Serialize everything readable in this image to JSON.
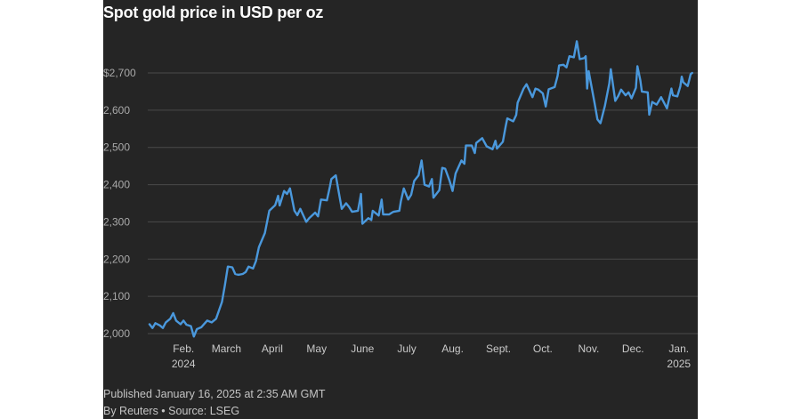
{
  "title": "Spot gold price in USD per oz",
  "published": "Published January 16, 2025 at 2:35 AM GMT",
  "byline": "By Reuters • Source: LSEG",
  "colors": {
    "background": "#252525",
    "line": "#4a98dc",
    "grid": "#4a4a4a"
  },
  "chart_data": {
    "type": "line",
    "title": "Spot gold price in USD per oz",
    "xlabel": "",
    "ylabel": "",
    "ylim": [
      2000,
      2750
    ],
    "xlim": [
      "2024-01-15",
      "2025-01-15"
    ],
    "grid": true,
    "y_ticks": [
      {
        "value": 2000,
        "label": "2,000"
      },
      {
        "value": 2100,
        "label": "2,100"
      },
      {
        "value": 2200,
        "label": "2,200"
      },
      {
        "value": 2300,
        "label": "2,300"
      },
      {
        "value": 2400,
        "label": "2,400"
      },
      {
        "value": 2500,
        "label": "2,500"
      },
      {
        "value": 2600,
        "label": "2,600"
      },
      {
        "value": 2700,
        "label": "$2,700"
      }
    ],
    "x_ticks": [
      {
        "date": "2024-02-01",
        "label": "Feb.",
        "sublabel": "2024"
      },
      {
        "date": "2024-03-01",
        "label": "March",
        "sublabel": ""
      },
      {
        "date": "2024-04-01",
        "label": "April",
        "sublabel": ""
      },
      {
        "date": "2024-05-01",
        "label": "May",
        "sublabel": ""
      },
      {
        "date": "2024-06-01",
        "label": "June",
        "sublabel": ""
      },
      {
        "date": "2024-07-01",
        "label": "July",
        "sublabel": ""
      },
      {
        "date": "2024-08-01",
        "label": "Aug.",
        "sublabel": ""
      },
      {
        "date": "2024-09-01",
        "label": "Sept.",
        "sublabel": ""
      },
      {
        "date": "2024-10-01",
        "label": "Oct.",
        "sublabel": ""
      },
      {
        "date": "2024-11-01",
        "label": "Nov.",
        "sublabel": ""
      },
      {
        "date": "2024-12-01",
        "label": "Dec.",
        "sublabel": ""
      },
      {
        "date": "2025-01-01",
        "label": "Jan.",
        "sublabel": "2025"
      }
    ],
    "series": [
      {
        "values": [
          [
            "2024-01-15",
            2025
          ],
          [
            "2024-01-17",
            2015
          ],
          [
            "2024-01-19",
            2028
          ],
          [
            "2024-01-22",
            2022
          ],
          [
            "2024-01-24",
            2015
          ],
          [
            "2024-01-26",
            2030
          ],
          [
            "2024-01-29",
            2040
          ],
          [
            "2024-01-31",
            2055
          ],
          [
            "2024-02-02",
            2035
          ],
          [
            "2024-02-05",
            2025
          ],
          [
            "2024-02-07",
            2035
          ],
          [
            "2024-02-09",
            2024
          ],
          [
            "2024-02-12",
            2020
          ],
          [
            "2024-02-14",
            1992
          ],
          [
            "2024-02-16",
            2012
          ],
          [
            "2024-02-19",
            2017
          ],
          [
            "2024-02-21",
            2026
          ],
          [
            "2024-02-23",
            2035
          ],
          [
            "2024-02-26",
            2030
          ],
          [
            "2024-02-29",
            2040
          ],
          [
            "2024-03-04",
            2085
          ],
          [
            "2024-03-06",
            2130
          ],
          [
            "2024-03-08",
            2180
          ],
          [
            "2024-03-11",
            2178
          ],
          [
            "2024-03-13",
            2160
          ],
          [
            "2024-03-15",
            2158
          ],
          [
            "2024-03-18",
            2160
          ],
          [
            "2024-03-20",
            2165
          ],
          [
            "2024-03-22",
            2180
          ],
          [
            "2024-03-25",
            2175
          ],
          [
            "2024-03-27",
            2195
          ],
          [
            "2024-03-29",
            2232
          ],
          [
            "2024-04-02",
            2270
          ],
          [
            "2024-04-05",
            2330
          ],
          [
            "2024-04-09",
            2345
          ],
          [
            "2024-04-11",
            2370
          ],
          [
            "2024-04-12",
            2344
          ],
          [
            "2024-04-15",
            2383
          ],
          [
            "2024-04-17",
            2375
          ],
          [
            "2024-04-19",
            2390
          ],
          [
            "2024-04-22",
            2330
          ],
          [
            "2024-04-24",
            2318
          ],
          [
            "2024-04-26",
            2335
          ],
          [
            "2024-04-30",
            2300
          ],
          [
            "2024-05-02",
            2310
          ],
          [
            "2024-05-06",
            2325
          ],
          [
            "2024-05-08",
            2315
          ],
          [
            "2024-05-10",
            2360
          ],
          [
            "2024-05-14",
            2358
          ],
          [
            "2024-05-16",
            2395
          ],
          [
            "2024-05-17",
            2415
          ],
          [
            "2024-05-20",
            2425
          ],
          [
            "2024-05-22",
            2380
          ],
          [
            "2024-05-24",
            2335
          ],
          [
            "2024-05-27",
            2350
          ],
          [
            "2024-05-29",
            2340
          ],
          [
            "2024-05-31",
            2327
          ],
          [
            "2024-06-04",
            2330
          ],
          [
            "2024-06-05",
            2352
          ],
          [
            "2024-06-06",
            2375
          ],
          [
            "2024-06-07",
            2295
          ],
          [
            "2024-06-11",
            2310
          ],
          [
            "2024-06-13",
            2305
          ],
          [
            "2024-06-14",
            2330
          ],
          [
            "2024-06-18",
            2317
          ],
          [
            "2024-06-20",
            2360
          ],
          [
            "2024-06-21",
            2320
          ],
          [
            "2024-06-25",
            2320
          ],
          [
            "2024-06-27",
            2325
          ],
          [
            "2024-06-28",
            2327
          ],
          [
            "2024-07-02",
            2330
          ],
          [
            "2024-07-03",
            2355
          ],
          [
            "2024-07-05",
            2390
          ],
          [
            "2024-07-08",
            2360
          ],
          [
            "2024-07-10",
            2373
          ],
          [
            "2024-07-12",
            2410
          ],
          [
            "2024-07-15",
            2425
          ],
          [
            "2024-07-17",
            2465
          ],
          [
            "2024-07-19",
            2400
          ],
          [
            "2024-07-22",
            2395
          ],
          [
            "2024-07-24",
            2415
          ],
          [
            "2024-07-25",
            2365
          ],
          [
            "2024-07-29",
            2385
          ],
          [
            "2024-07-31",
            2445
          ],
          [
            "2024-08-02",
            2443
          ],
          [
            "2024-08-05",
            2410
          ],
          [
            "2024-08-07",
            2383
          ],
          [
            "2024-08-09",
            2430
          ],
          [
            "2024-08-13",
            2465
          ],
          [
            "2024-08-15",
            2456
          ],
          [
            "2024-08-16",
            2505
          ],
          [
            "2024-08-20",
            2505
          ],
          [
            "2024-08-22",
            2485
          ],
          [
            "2024-08-23",
            2512
          ],
          [
            "2024-08-27",
            2525
          ],
          [
            "2024-08-30",
            2503
          ],
          [
            "2024-09-03",
            2495
          ],
          [
            "2024-09-05",
            2518
          ],
          [
            "2024-09-06",
            2497
          ],
          [
            "2024-09-10",
            2515
          ],
          [
            "2024-09-12",
            2558
          ],
          [
            "2024-09-13",
            2578
          ],
          [
            "2024-09-17",
            2570
          ],
          [
            "2024-09-19",
            2587
          ],
          [
            "2024-09-20",
            2620
          ],
          [
            "2024-09-24",
            2658
          ],
          [
            "2024-09-26",
            2670
          ],
          [
            "2024-09-30",
            2635
          ],
          [
            "2024-10-02",
            2658
          ],
          [
            "2024-10-04",
            2655
          ],
          [
            "2024-10-07",
            2645
          ],
          [
            "2024-10-09",
            2610
          ],
          [
            "2024-10-11",
            2656
          ],
          [
            "2024-10-15",
            2662
          ],
          [
            "2024-10-17",
            2692
          ],
          [
            "2024-10-18",
            2720
          ],
          [
            "2024-10-21",
            2722
          ],
          [
            "2024-10-23",
            2715
          ],
          [
            "2024-10-25",
            2745
          ],
          [
            "2024-10-28",
            2742
          ],
          [
            "2024-10-30",
            2785
          ],
          [
            "2024-11-01",
            2737
          ],
          [
            "2024-11-04",
            2740
          ],
          [
            "2024-11-05",
            2745
          ],
          [
            "2024-11-06",
            2658
          ],
          [
            "2024-11-07",
            2705
          ],
          [
            "2024-11-11",
            2620
          ],
          [
            "2024-11-13",
            2575
          ],
          [
            "2024-11-15",
            2565
          ],
          [
            "2024-11-18",
            2612
          ],
          [
            "2024-11-21",
            2672
          ],
          [
            "2024-11-22",
            2710
          ],
          [
            "2024-11-25",
            2625
          ],
          [
            "2024-11-27",
            2638
          ],
          [
            "2024-11-29",
            2655
          ],
          [
            "2024-12-02",
            2640
          ],
          [
            "2024-12-04",
            2648
          ],
          [
            "2024-12-06",
            2632
          ],
          [
            "2024-12-09",
            2660
          ],
          [
            "2024-12-10",
            2718
          ],
          [
            "2024-12-12",
            2680
          ],
          [
            "2024-12-13",
            2650
          ],
          [
            "2024-12-17",
            2648
          ],
          [
            "2024-12-18",
            2588
          ],
          [
            "2024-12-20",
            2622
          ],
          [
            "2024-12-23",
            2615
          ],
          [
            "2024-12-26",
            2635
          ],
          [
            "2024-12-30",
            2605
          ],
          [
            "2025-01-02",
            2658
          ],
          [
            "2025-01-03",
            2640
          ],
          [
            "2025-01-06",
            2637
          ],
          [
            "2025-01-08",
            2664
          ],
          [
            "2025-01-09",
            2690
          ],
          [
            "2025-01-10",
            2675
          ],
          [
            "2025-01-13",
            2665
          ],
          [
            "2025-01-14",
            2680
          ],
          [
            "2025-01-15",
            2697
          ],
          [
            "2025-01-16",
            2700
          ]
        ]
      }
    ]
  }
}
